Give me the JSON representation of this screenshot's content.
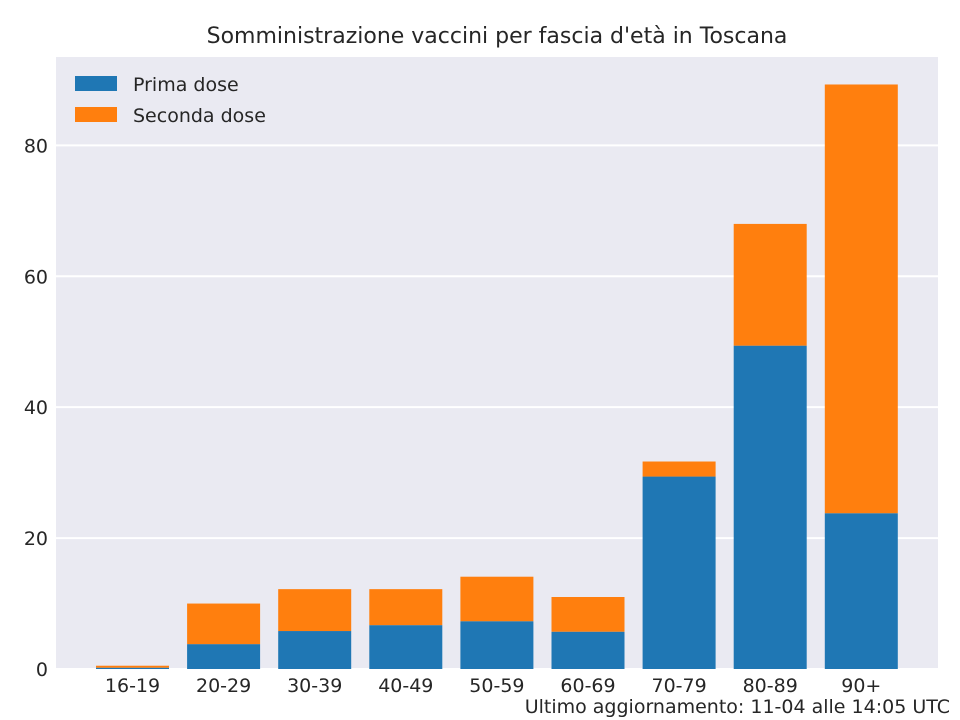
{
  "chart_data": {
    "type": "bar",
    "stacked": true,
    "title": "Somministrazione vaccini per fascia d'età in Toscana",
    "xlabel": "",
    "ylabel": "",
    "categories": [
      "16-19",
      "20-29",
      "30-39",
      "40-49",
      "50-59",
      "60-69",
      "70-79",
      "80-89",
      "90+"
    ],
    "series": [
      {
        "name": "Prima dose",
        "color": "#1f77b4",
        "values": [
          0.2,
          3.8,
          5.8,
          6.7,
          7.3,
          5.7,
          29.4,
          49.4,
          23.8
        ]
      },
      {
        "name": "Seconda dose",
        "color": "#ff7f0e",
        "values": [
          0.3,
          6.2,
          6.4,
          5.5,
          6.8,
          5.3,
          2.3,
          18.6,
          65.5
        ]
      }
    ],
    "ylim": [
      0,
      93.5
    ],
    "yticks": [
      0,
      20,
      40,
      60,
      80
    ],
    "grid": true,
    "legend": "top-left",
    "background": "#eaeaf2"
  },
  "footnote": "Ultimo aggiornamento: 11-04 alle 14:05 UTC"
}
